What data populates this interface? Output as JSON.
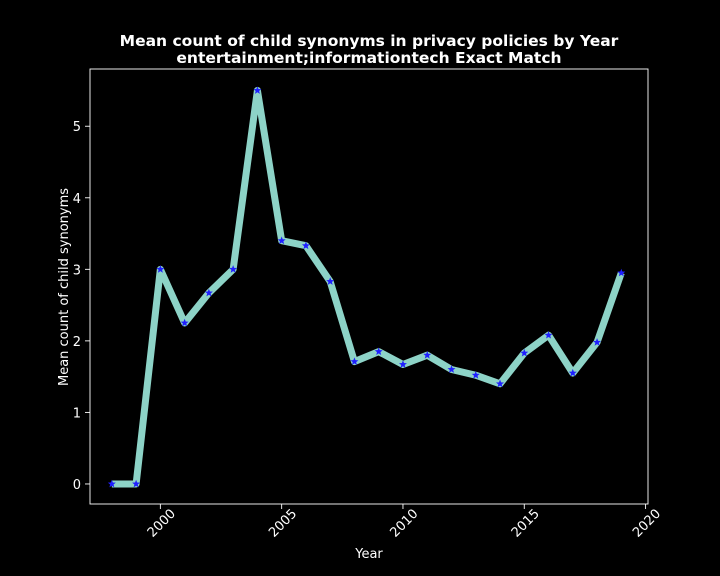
{
  "chart_data": {
    "type": "line",
    "title": "Mean count of child synonyms in privacy policies by Year",
    "subtitle": "entertainment;informationtech Exact Match",
    "xlabel": "Year",
    "ylabel": "Mean count of child synonyms",
    "xlim": [
      1997.1,
      2020.1
    ],
    "ylim": [
      -0.28,
      5.8
    ],
    "xticks": [
      2000,
      2005,
      2010,
      2015,
      2020
    ],
    "yticks": [
      0,
      1,
      2,
      3,
      4,
      5
    ],
    "grid": false,
    "line_color": "#8dd3c7",
    "marker_color": "#1f1fff",
    "x": [
      1998,
      1999,
      2000,
      2001,
      2002,
      2003,
      2004,
      2005,
      2006,
      2007,
      2008,
      2009,
      2010,
      2011,
      2012,
      2013,
      2014,
      2015,
      2016,
      2017,
      2018,
      2019
    ],
    "y": [
      0.0,
      0.0,
      3.0,
      2.25,
      2.67,
      3.0,
      5.5,
      3.4,
      3.33,
      2.83,
      1.71,
      1.85,
      1.67,
      1.8,
      1.6,
      1.52,
      1.4,
      1.83,
      2.08,
      1.55,
      1.98,
      2.95
    ]
  }
}
